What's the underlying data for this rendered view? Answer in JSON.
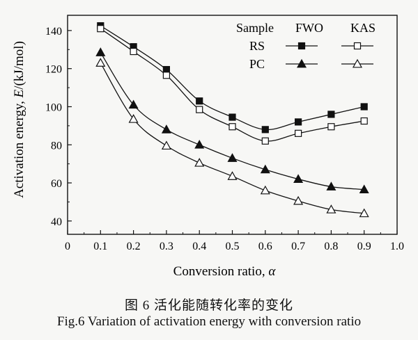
{
  "chart_data": {
    "type": "line",
    "xlabel": "Conversion ratio, α",
    "ylabel": "Activation energy, E/(kJ/mol)",
    "xlim": [
      0,
      1.0
    ],
    "ylim": [
      33,
      148
    ],
    "xticks": [
      "0",
      "0.1",
      "0.2",
      "0.3",
      "0.4",
      "0.5",
      "0.6",
      "0.7",
      "0.8",
      "0.9",
      "1.0"
    ],
    "yticks": [
      "40",
      "60",
      "80",
      "100",
      "120",
      "140"
    ],
    "ytick_values": [
      40,
      60,
      80,
      100,
      120,
      140
    ],
    "xtick_values": [
      0,
      0.1,
      0.2,
      0.3,
      0.4,
      0.5,
      0.6,
      0.7,
      0.8,
      0.9,
      1.0
    ],
    "x": [
      0.1,
      0.2,
      0.3,
      0.4,
      0.5,
      0.6,
      0.7,
      0.8,
      0.9
    ],
    "legend": {
      "header": [
        "Sample",
        "FWO",
        "KAS"
      ],
      "rows": [
        "RS",
        "PC"
      ],
      "placement": "top-right"
    },
    "series": [
      {
        "name": "RS FWO",
        "marker": "filled-square",
        "values": [
          142.5,
          131.5,
          119.5,
          103,
          94.5,
          88,
          92,
          96,
          100
        ]
      },
      {
        "name": "RS KAS",
        "marker": "open-square",
        "values": [
          141,
          129,
          116.5,
          98.5,
          89.5,
          82,
          86,
          89.5,
          92.5
        ]
      },
      {
        "name": "PC FWO",
        "marker": "filled-triangle",
        "values": [
          128.5,
          101,
          88,
          80,
          73,
          67,
          62,
          58,
          56.5
        ]
      },
      {
        "name": "PC KAS",
        "marker": "open-triangle",
        "values": [
          123,
          93.5,
          79.5,
          70.5,
          63.5,
          56,
          50.5,
          46,
          44
        ]
      }
    ]
  },
  "caption": {
    "chinese": "图 6   活化能随转化率的变化",
    "english": "Fig.6    Variation of activation energy with conversion ratio"
  }
}
